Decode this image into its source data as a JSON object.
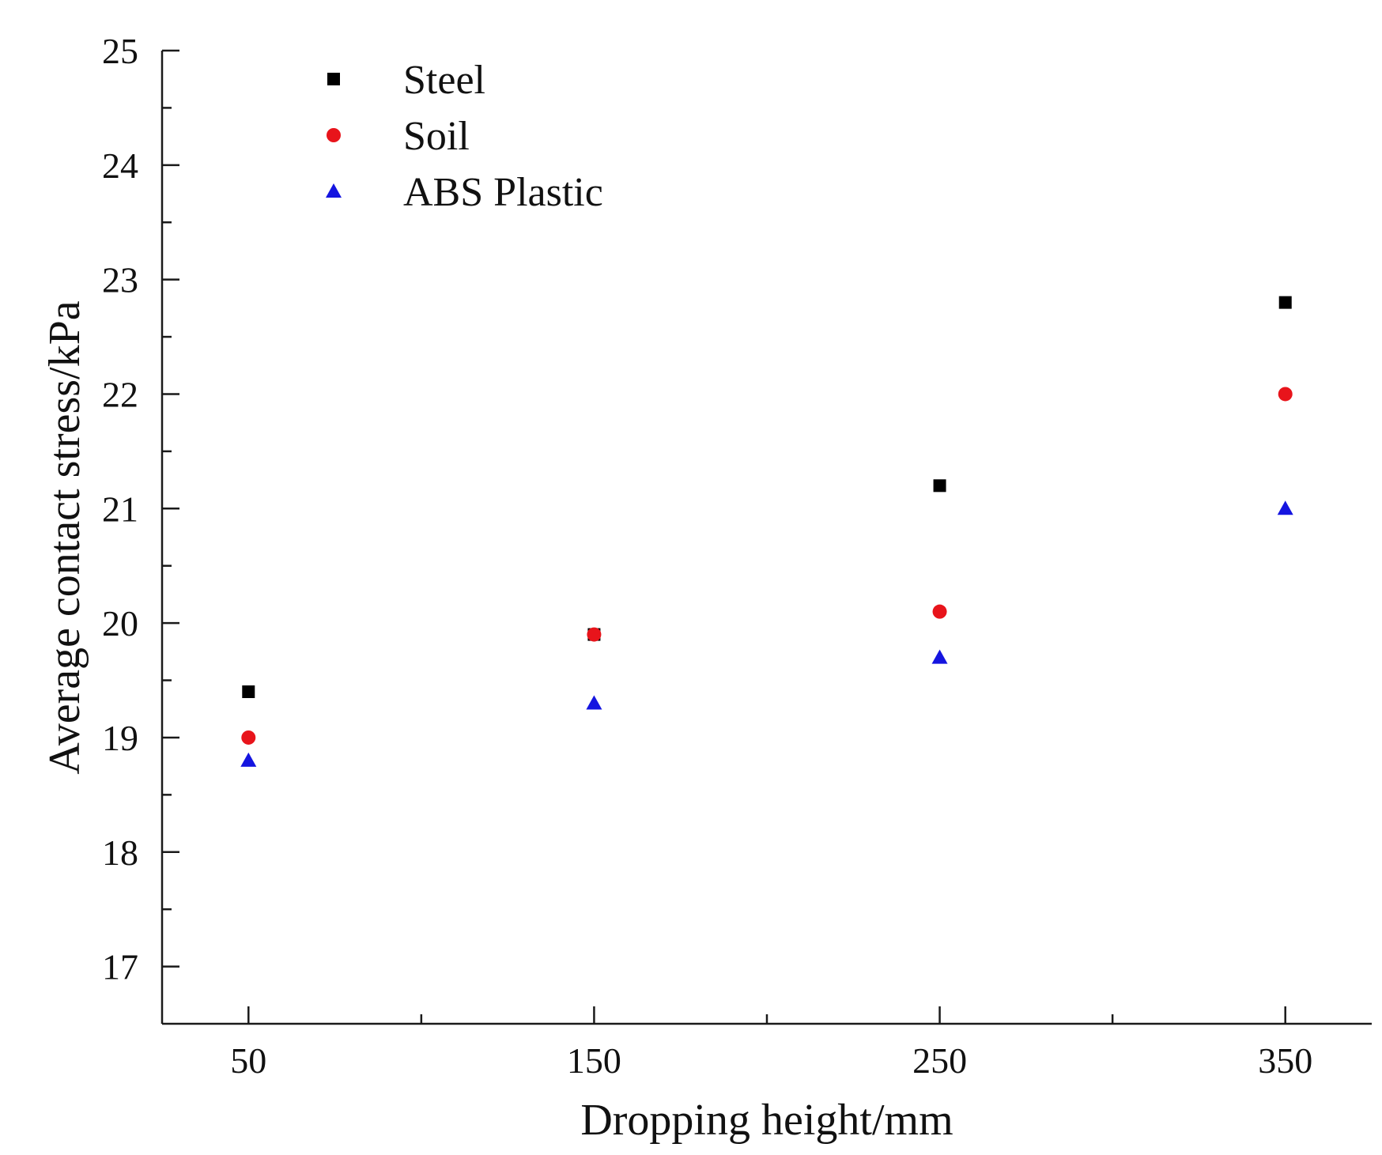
{
  "chart_data": {
    "type": "scatter",
    "title": "",
    "xlabel": "Dropping height/mm",
    "ylabel": "Average  contact stress/kPa",
    "x": [
      50,
      150,
      250,
      350
    ],
    "xticks": [
      "50",
      "150",
      "250",
      "350"
    ],
    "xlim": [
      25,
      375
    ],
    "ylim": [
      16.5,
      25
    ],
    "yticks": [
      "17",
      "18",
      "19",
      "20",
      "21",
      "22",
      "23",
      "24",
      "25"
    ],
    "legend_position": "top-left",
    "series": [
      {
        "name": "Steel",
        "marker": "square",
        "color": "#000000",
        "values": [
          19.4,
          19.9,
          21.2,
          22.8
        ]
      },
      {
        "name": "Soil",
        "marker": "circle",
        "color": "#e8141b",
        "values": [
          19.0,
          19.9,
          20.1,
          22.0
        ]
      },
      {
        "name": "ABS Plastic",
        "marker": "triangle",
        "color": "#1515e0",
        "values": [
          18.8,
          19.3,
          19.7,
          21.0
        ]
      }
    ]
  }
}
